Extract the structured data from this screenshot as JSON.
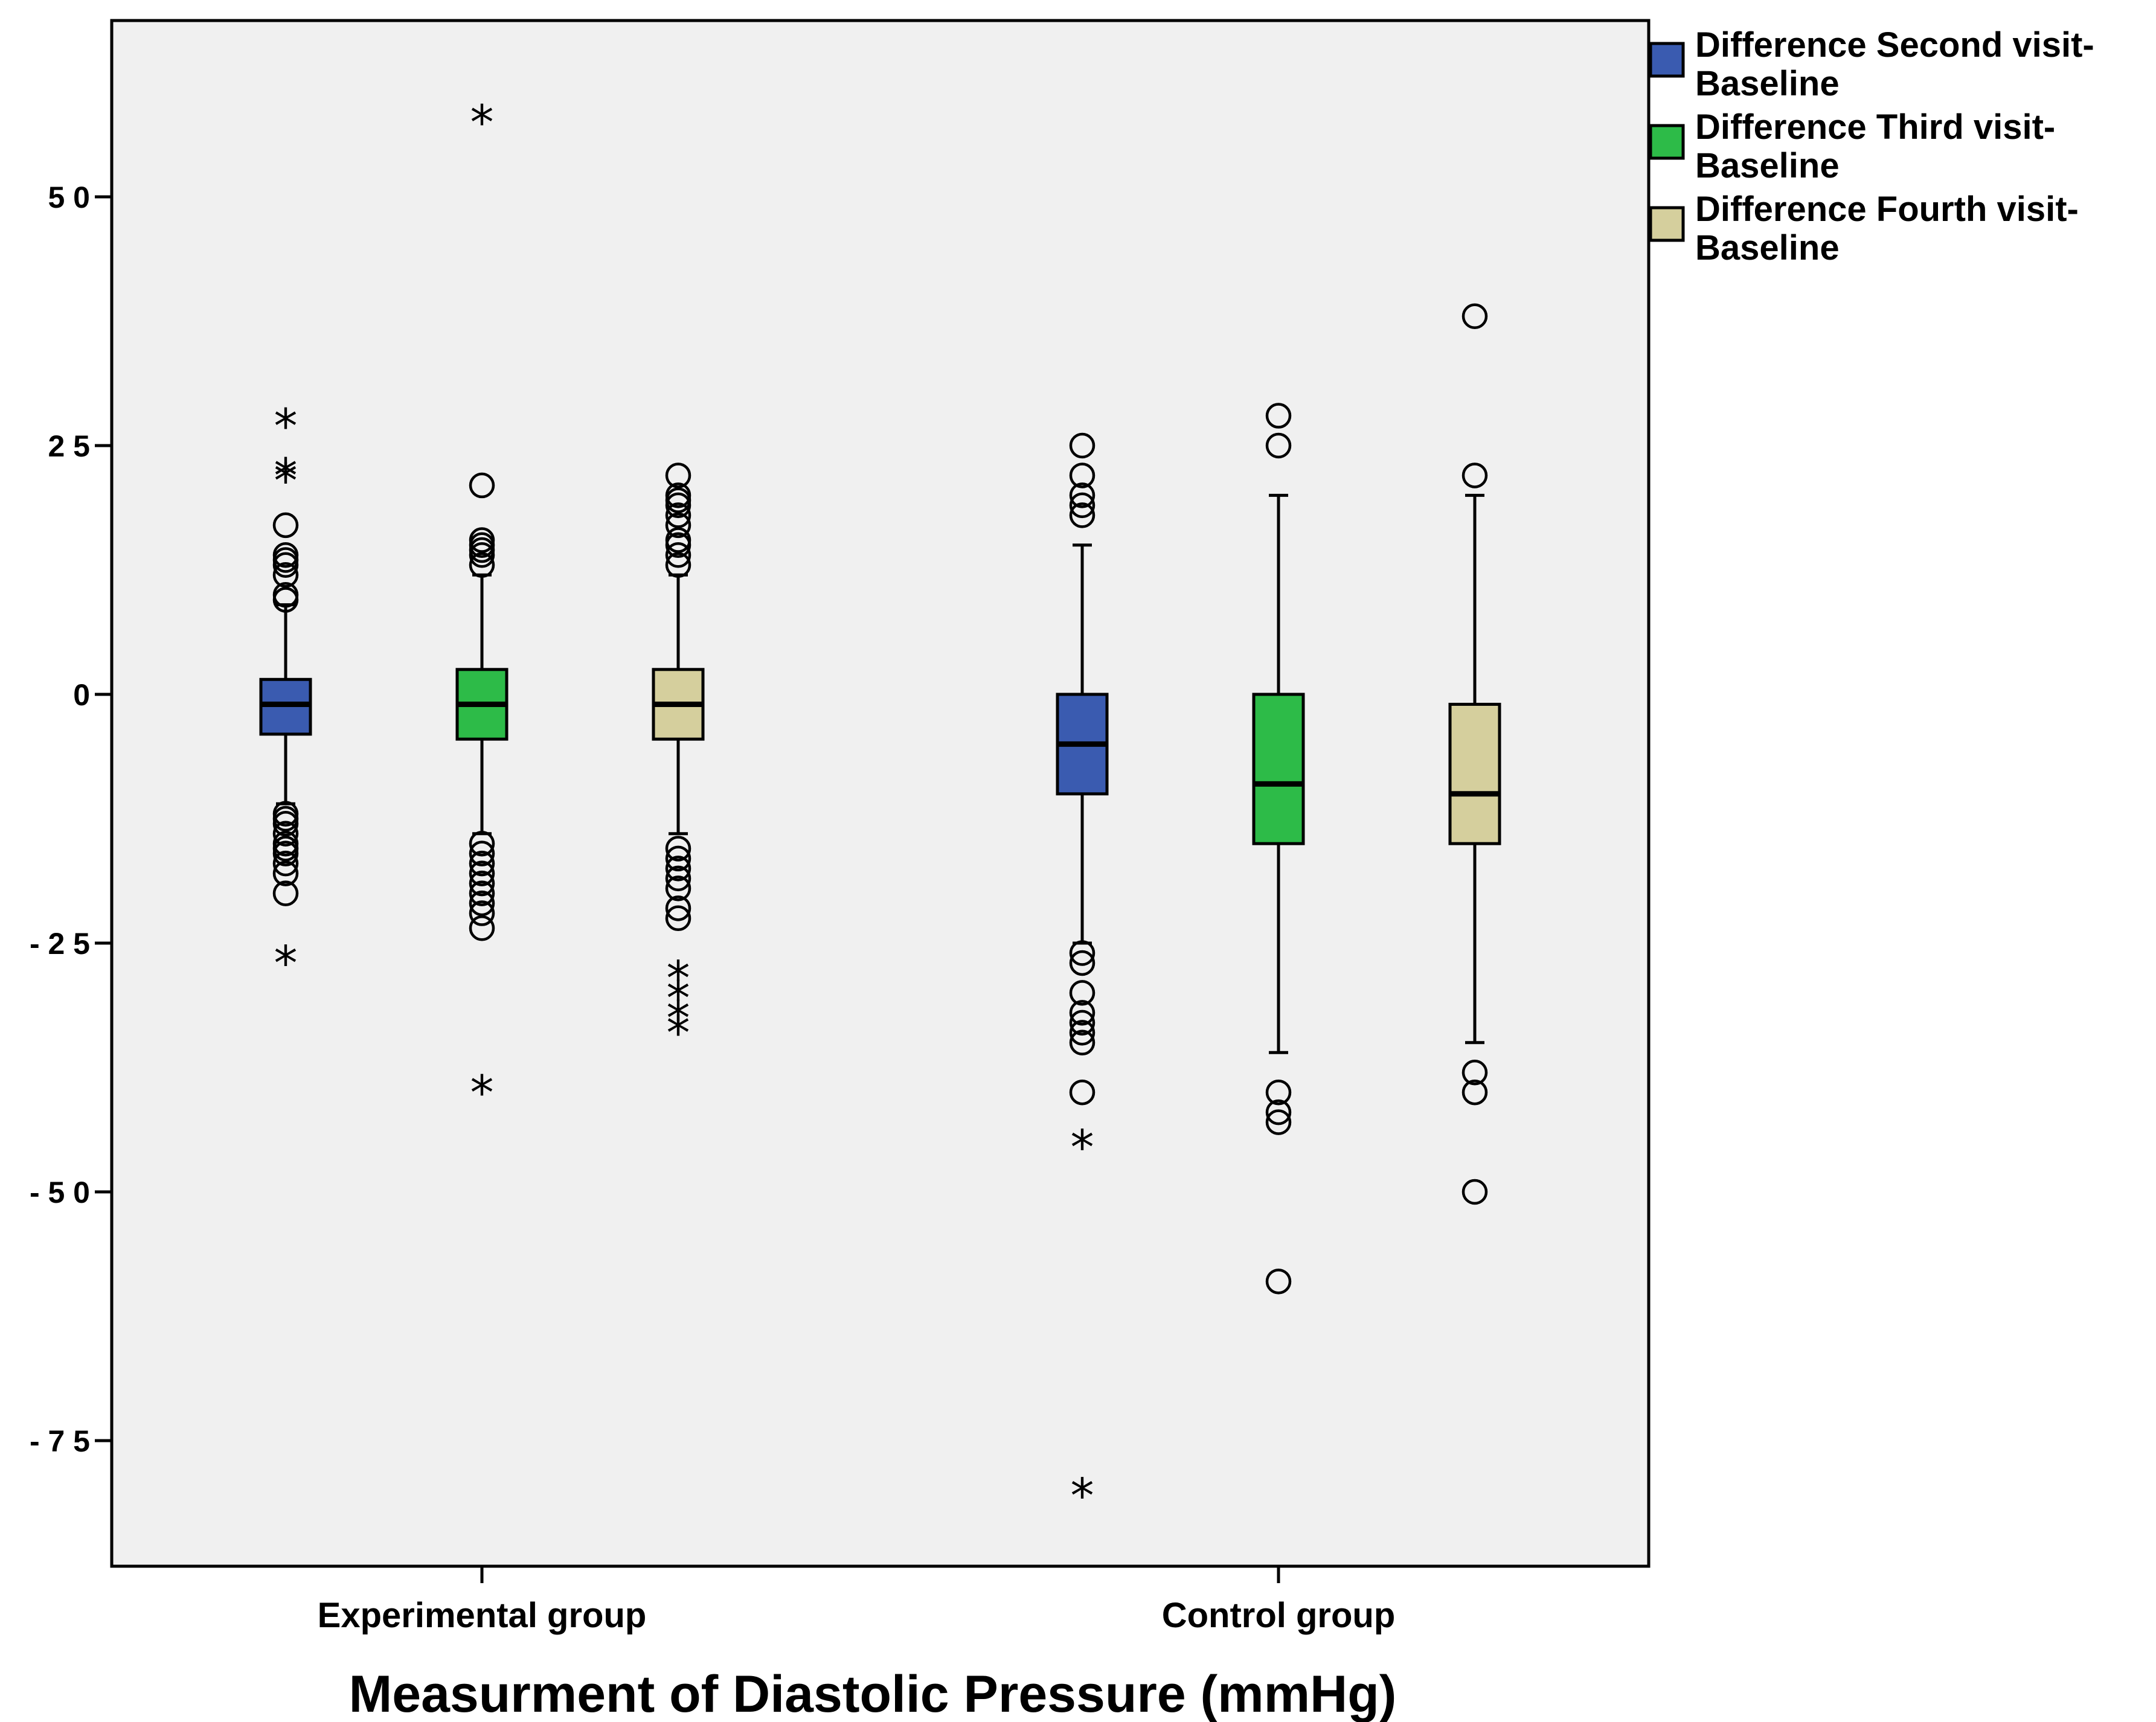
{
  "colors": {
    "plot_bg": "#f0f0f0",
    "second": "#3a5bb0",
    "third": "#2dbb48",
    "fourth": "#d5cf9d",
    "stroke": "#000000"
  },
  "chart_data": {
    "type": "boxplot",
    "title": "Measurment of Diastolic Pressure (mmHg)",
    "xlabel": "Measurment of Diastolic Pressure (mmHg)",
    "ylabel": "",
    "ylim": [
      -88,
      68
    ],
    "yticks": [
      50,
      25,
      0,
      -25,
      -50,
      -75
    ],
    "ytick_labels": [
      "5 0",
      "2 5",
      "0",
      "- 2 5",
      "- 5 0",
      "- 7 5"
    ],
    "categories": [
      "Experimental group",
      "Control group"
    ],
    "legend_position": "top-right, outside plot",
    "series": [
      {
        "name": "Difference Second visit-Baseline",
        "legend_line1": "Difference Second visit-",
        "legend_line2": "Baseline",
        "color_key": "second",
        "boxes": [
          {
            "q1": -4,
            "median": -1,
            "q3": 1.5,
            "whisker_low": -11,
            "whisker_high": 9,
            "outliers": [
              17,
              14,
              13.5,
              13,
              12,
              10,
              9.5,
              -12,
              -12.5,
              -13,
              -14,
              -15,
              -15.5,
              -16,
              -17,
              -18,
              -20
            ],
            "extremes": [
              27.5,
              22.5,
              22,
              -26.5
            ]
          },
          {
            "q1": -10,
            "median": -5,
            "q3": 0,
            "whisker_low": -25,
            "whisker_high": 15,
            "outliers": [
              25,
              22,
              20,
              19,
              18,
              -26,
              -27,
              -30,
              -32,
              -33,
              -34,
              -35,
              -40
            ],
            "extremes": [
              -45,
              -80
            ]
          }
        ]
      },
      {
        "name": "Difference Third visit-Baseline",
        "legend_line1": "Difference Third visit-",
        "legend_line2": "Baseline",
        "color_key": "third",
        "boxes": [
          {
            "q1": -4.5,
            "median": -1,
            "q3": 2.5,
            "whisker_low": -14,
            "whisker_high": 12,
            "outliers": [
              21,
              15.5,
              15,
              14.5,
              14,
              13,
              -15,
              -16,
              -17,
              -18,
              -19,
              -20,
              -21,
              -22,
              -23.5
            ],
            "extremes": [
              58,
              -39.5
            ]
          },
          {
            "q1": -15,
            "median": -9,
            "q3": 0,
            "whisker_low": -36,
            "whisker_high": 20,
            "outliers": [
              28,
              25,
              -40,
              -42,
              -43,
              -59
            ],
            "extremes": []
          }
        ]
      },
      {
        "name": "Difference Fourth visit-Baseline",
        "legend_line1": "Difference Fourth visit-",
        "legend_line2": "Baseline",
        "color_key": "fourth",
        "boxes": [
          {
            "q1": -4.5,
            "median": -1,
            "q3": 2.5,
            "whisker_low": -14,
            "whisker_high": 12,
            "outliers": [
              22,
              20,
              19.5,
              19,
              18,
              17,
              15.5,
              15,
              14,
              13,
              -15.5,
              -16.5,
              -17.5,
              -18.5,
              -19.5,
              -21.5,
              -22.5
            ],
            "extremes": [
              -28,
              -30,
              -32,
              -33.5
            ]
          },
          {
            "q1": -15,
            "median": -10,
            "q3": -1,
            "whisker_low": -35,
            "whisker_high": 20,
            "outliers": [
              38,
              22,
              -38,
              -40,
              -50
            ],
            "extremes": []
          }
        ]
      }
    ]
  }
}
